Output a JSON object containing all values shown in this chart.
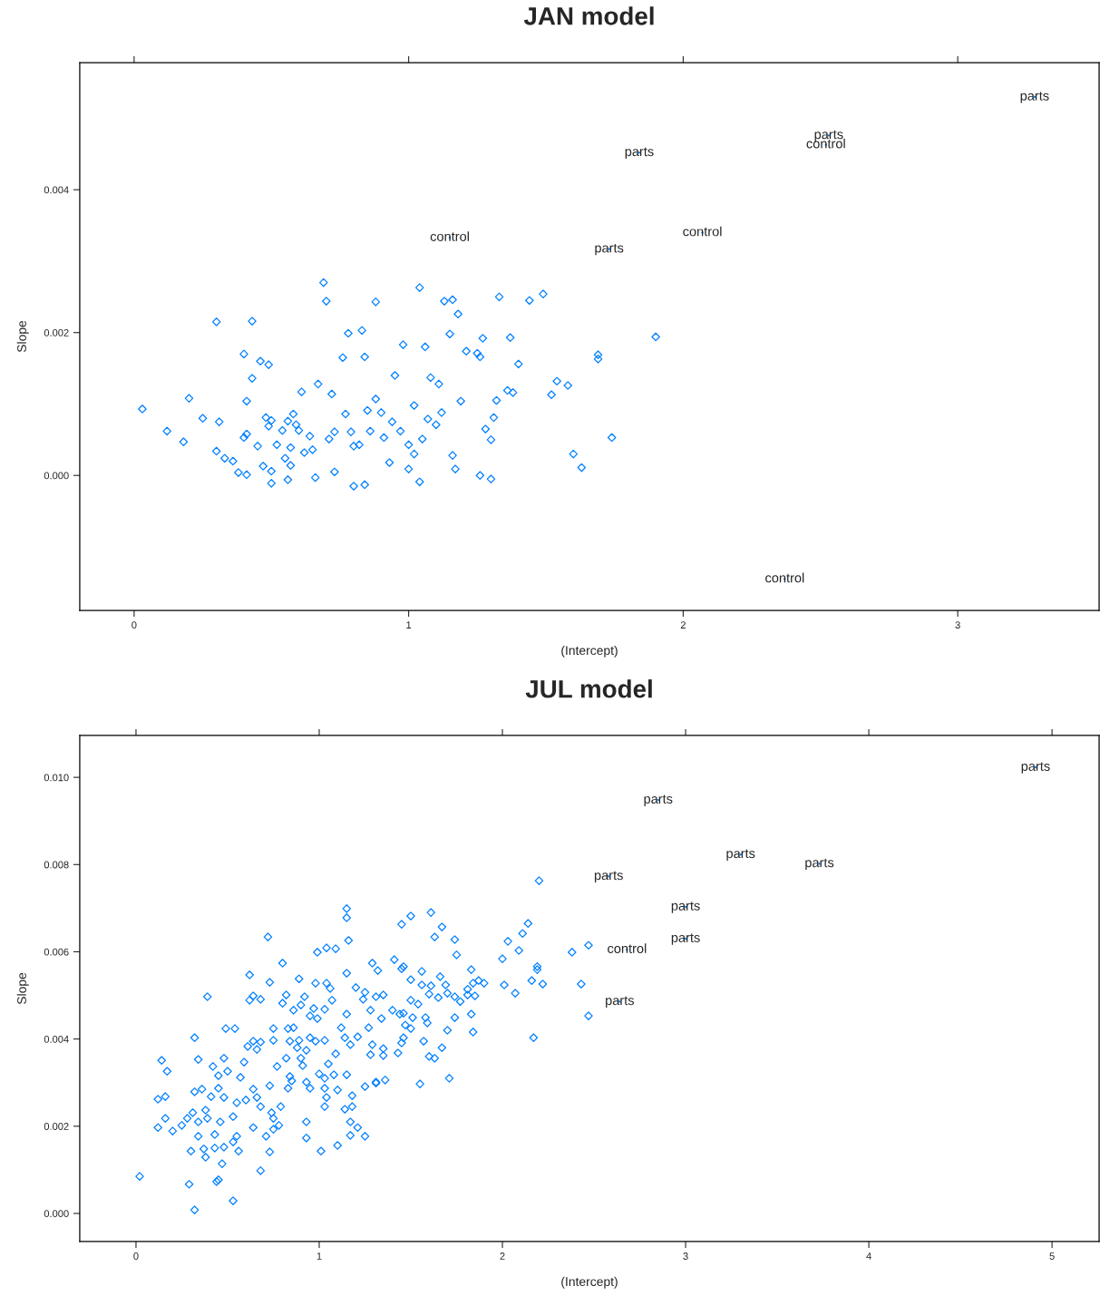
{
  "chart_data": [
    {
      "type": "scatter",
      "title": "JAN model",
      "xlabel": "(Intercept)",
      "ylabel": "Slope",
      "color": "#0080ff",
      "marker": "diamond",
      "grid": false,
      "xlim": [
        -0.198,
        3.515
      ],
      "ylim": [
        -0.00189,
        0.00578
      ],
      "xticks": [
        0,
        1,
        2,
        3
      ],
      "yticks": [
        {
          "value": 0,
          "label": "0.000"
        },
        {
          "value": 0.002,
          "label": "0.002"
        },
        {
          "value": 0.004,
          "label": "0.004"
        }
      ],
      "x": [
        0.03,
        0.12,
        0.18,
        0.2,
        0.25,
        0.3,
        0.31,
        0.3,
        0.33,
        0.36,
        0.38,
        0.4,
        0.41,
        0.41,
        0.41,
        0.43,
        0.43,
        0.4,
        0.46,
        0.49,
        0.45,
        0.47,
        0.48,
        0.49,
        0.5,
        0.5,
        0.5,
        0.52,
        0.54,
        0.55,
        0.56,
        0.56,
        0.57,
        0.57,
        0.58,
        0.59,
        0.6,
        0.61,
        0.62,
        0.64,
        0.65,
        0.66,
        0.67,
        0.69,
        0.7,
        0.71,
        0.72,
        0.73,
        0.73,
        0.76,
        0.77,
        0.78,
        0.79,
        0.8,
        0.8,
        0.82,
        0.83,
        0.84,
        0.84,
        0.85,
        0.86,
        0.88,
        0.88,
        0.9,
        0.91,
        0.93,
        0.95,
        0.94,
        0.97,
        0.98,
        1.0,
        1.0,
        1.02,
        1.02,
        1.04,
        1.04,
        1.05,
        1.06,
        1.07,
        1.08,
        1.1,
        1.11,
        1.12,
        1.13,
        1.15,
        1.16,
        1.16,
        1.18,
        1.17,
        1.19,
        1.21,
        1.25,
        1.26,
        1.26,
        1.27,
        1.28,
        1.3,
        1.3,
        1.31,
        1.32,
        1.33,
        1.36,
        1.37,
        1.38,
        1.4,
        1.44,
        1.49,
        1.52,
        1.54,
        1.58,
        1.6,
        1.63,
        1.69,
        1.69,
        1.74,
        1.9
      ],
      "values": [
        0.00093,
        0.00062,
        0.00047,
        0.00108,
        0.0008,
        0.00215,
        0.00075,
        0.00034,
        0.00024,
        0.0002,
        4e-05,
        0.00053,
        0.00058,
        1e-05,
        0.00104,
        0.00136,
        0.00216,
        0.0017,
        0.0016,
        0.00155,
        0.00041,
        0.00013,
        0.00081,
        0.00069,
        0.00077,
        6e-05,
        -0.00011,
        0.00043,
        0.00063,
        0.00024,
        -6e-05,
        0.00076,
        0.00039,
        0.00014,
        0.00086,
        0.00071,
        0.00063,
        0.00117,
        0.00032,
        0.00055,
        0.00036,
        -3e-05,
        0.00128,
        0.0027,
        0.00244,
        0.00051,
        0.00114,
        0.00061,
        5e-05,
        0.00165,
        0.00086,
        0.00199,
        0.00061,
        0.00041,
        -0.00015,
        0.00043,
        0.00203,
        0.00166,
        -0.00013,
        0.00091,
        0.00062,
        0.00107,
        0.00243,
        0.00088,
        0.00053,
        0.00018,
        0.0014,
        0.00075,
        0.00062,
        0.00183,
        9e-05,
        0.00043,
        0.00098,
        0.0003,
        0.00263,
        -9e-05,
        0.00051,
        0.0018,
        0.00079,
        0.00137,
        0.00071,
        0.00128,
        0.00088,
        0.00244,
        0.00198,
        0.00246,
        0.00028,
        0.00226,
        9e-05,
        0.00104,
        0.00174,
        0.00171,
        0.00166,
        0.0,
        0.00192,
        0.00065,
        0.0005,
        -5e-05,
        0.00081,
        0.00105,
        0.0025,
        0.00119,
        0.00193,
        0.00116,
        0.00156,
        0.00245,
        0.00254,
        0.00113,
        0.00132,
        0.00126,
        0.0003,
        0.00011,
        0.00163,
        0.00169,
        0.00053,
        0.00194
      ],
      "annotations": [
        {
          "text": "parts",
          "x": 3.28,
          "y": 0.0053
        },
        {
          "text": "parts",
          "x": 2.53,
          "y": 0.00476
        },
        {
          "text": "control",
          "x": 2.52,
          "y": 0.00463
        },
        {
          "text": "parts",
          "x": 1.84,
          "y": 0.00452
        },
        {
          "text": "control",
          "x": 2.07,
          "y": 0.0034
        },
        {
          "text": "parts",
          "x": 1.73,
          "y": 0.00317
        },
        {
          "text": "control",
          "x": 1.15,
          "y": 0.00333
        },
        {
          "text": "control",
          "x": 2.37,
          "y": -0.00145
        }
      ]
    },
    {
      "type": "scatter",
      "title": "JUL model",
      "xlabel": "(Intercept)",
      "ylabel": "Slope",
      "color": "#0080ff",
      "marker": "diamond",
      "grid": false,
      "xlim": [
        -0.307,
        5.257
      ],
      "ylim": [
        -0.000645,
        0.01096
      ],
      "xticks": [
        0,
        1,
        2,
        3,
        4,
        5
      ],
      "yticks": [
        {
          "value": 0,
          "label": "0.000"
        },
        {
          "value": 0.002,
          "label": "0.002"
        },
        {
          "value": 0.004,
          "label": "0.004"
        },
        {
          "value": 0.006,
          "label": "0.006"
        },
        {
          "value": 0.008,
          "label": "0.008"
        },
        {
          "value": 0.01,
          "label": "0.010"
        }
      ],
      "x": [
        0.02,
        0.29,
        0.32,
        0.45,
        0.53,
        0.12,
        0.14,
        0.17,
        0.16,
        0.16,
        0.12,
        0.2,
        0.25,
        0.28,
        0.31,
        0.32,
        0.34,
        0.32,
        0.36,
        0.34,
        0.38,
        0.39,
        0.34,
        0.3,
        0.37,
        0.38,
        0.43,
        0.43,
        0.46,
        0.48,
        0.47,
        0.44,
        0.39,
        0.42,
        0.41,
        0.45,
        0.48,
        0.5,
        0.45,
        0.48,
        0.49,
        0.54,
        0.53,
        0.55,
        0.55,
        0.53,
        0.56,
        0.57,
        0.59,
        0.61,
        0.62,
        0.62,
        0.64,
        0.68,
        0.6,
        0.64,
        0.66,
        0.68,
        0.64,
        0.66,
        0.68,
        0.64,
        0.71,
        0.68,
        0.73,
        0.72,
        0.73,
        0.75,
        0.73,
        0.74,
        0.75,
        0.75,
        0.78,
        0.79,
        0.75,
        0.77,
        0.8,
        0.82,
        0.8,
        0.84,
        0.82,
        0.83,
        0.86,
        0.86,
        0.84,
        0.83,
        0.85,
        0.88,
        0.89,
        0.9,
        0.91,
        0.89,
        0.92,
        0.9,
        0.95,
        0.97,
        0.93,
        0.95,
        0.93,
        0.95,
        0.93,
        0.93,
        0.99,
        0.98,
        0.99,
        1.03,
        0.98,
        1.03,
        1.0,
        1.03,
        1.03,
        1.04,
        1.03,
        1.01,
        1.04,
        1.09,
        1.04,
        1.06,
        1.07,
        1.05,
        1.09,
        1.08,
        1.1,
        1.1,
        1.15,
        1.15,
        1.15,
        1.16,
        1.12,
        1.14,
        1.17,
        1.15,
        1.15,
        1.14,
        1.18,
        1.18,
        1.17,
        1.21,
        1.17,
        1.25,
        1.21,
        1.2,
        1.24,
        1.25,
        1.25,
        1.29,
        1.32,
        1.28,
        1.31,
        1.27,
        1.29,
        1.28,
        1.31,
        2.2,
        1.5,
        1.45,
        1.61,
        1.67,
        1.63,
        1.74,
        1.75,
        2.14,
        2.11,
        2.03,
        2.09,
        2.0,
        2.38,
        2.47,
        1.41,
        1.45,
        1.46,
        1.56,
        1.5,
        1.66,
        1.56,
        1.61,
        1.69,
        1.83,
        1.84,
        1.87,
        1.9,
        1.81,
        2.01,
        2.07,
        2.19,
        2.19,
        2.16,
        2.22,
        2.43,
        2.47,
        2.17,
        1.35,
        1.6,
        1.65,
        1.7,
        1.74,
        1.77,
        1.85,
        1.81,
        1.5,
        1.54,
        1.4,
        1.44,
        1.46,
        1.34,
        1.51,
        1.58,
        1.59,
        1.74,
        1.83,
        1.47,
        1.5,
        1.7,
        1.84,
        1.46,
        1.45,
        1.57,
        1.67,
        1.35,
        1.35,
        1.43,
        1.6,
        1.63,
        1.55,
        1.71,
        1.36,
        1.31
      ],
      "values": [
        0.00085,
        0.00067,
        8e-05,
        0.00077,
        0.00029,
        0.00262,
        0.00351,
        0.00326,
        0.00268,
        0.00218,
        0.00197,
        0.00189,
        0.00202,
        0.00218,
        0.00231,
        0.00403,
        0.00353,
        0.00279,
        0.00285,
        0.0021,
        0.00237,
        0.00218,
        0.00177,
        0.00143,
        0.00148,
        0.00129,
        0.00181,
        0.0015,
        0.0021,
        0.00152,
        0.00114,
        0.00073,
        0.00497,
        0.00337,
        0.00268,
        0.00316,
        0.00356,
        0.00326,
        0.00287,
        0.00266,
        0.00424,
        0.00424,
        0.00222,
        0.00254,
        0.00177,
        0.00164,
        0.00143,
        0.00312,
        0.00347,
        0.00383,
        0.00547,
        0.00489,
        0.00499,
        0.00491,
        0.0026,
        0.00395,
        0.00376,
        0.00393,
        0.00285,
        0.00266,
        0.00245,
        0.00197,
        0.00177,
        0.00098,
        0.00141,
        0.00634,
        0.0053,
        0.00397,
        0.00293,
        0.00231,
        0.00218,
        0.00193,
        0.00202,
        0.00245,
        0.00424,
        0.00337,
        0.00574,
        0.00501,
        0.00482,
        0.00395,
        0.00356,
        0.00424,
        0.00426,
        0.00466,
        0.00314,
        0.00287,
        0.00304,
        0.0038,
        0.00397,
        0.00356,
        0.00339,
        0.00538,
        0.00497,
        0.00478,
        0.00453,
        0.0047,
        0.00374,
        0.00403,
        0.00301,
        0.00287,
        0.0021,
        0.00173,
        0.00599,
        0.00528,
        0.00447,
        0.00468,
        0.00395,
        0.00397,
        0.0032,
        0.0031,
        0.00287,
        0.00266,
        0.00245,
        0.00143,
        0.00609,
        0.00607,
        0.00528,
        0.00516,
        0.00489,
        0.00343,
        0.00366,
        0.00318,
        0.00283,
        0.00156,
        0.00551,
        0.00699,
        0.00678,
        0.00626,
        0.00426,
        0.00403,
        0.00387,
        0.00457,
        0.00318,
        0.00239,
        0.0027,
        0.00245,
        0.0021,
        0.00197,
        0.00179,
        0.00177,
        0.00405,
        0.00518,
        0.00491,
        0.00507,
        0.00291,
        0.00574,
        0.00557,
        0.00466,
        0.00497,
        0.00426,
        0.00387,
        0.00364,
        0.00301,
        0.00763,
        0.00682,
        0.00663,
        0.0069,
        0.00657,
        0.00634,
        0.00628,
        0.00593,
        0.00665,
        0.00642,
        0.00624,
        0.00603,
        0.00584,
        0.00599,
        0.00615,
        0.00582,
        0.00561,
        0.00566,
        0.00555,
        0.00536,
        0.00543,
        0.00524,
        0.00522,
        0.00524,
        0.00559,
        0.00528,
        0.00534,
        0.00528,
        0.00514,
        0.00524,
        0.00505,
        0.00566,
        0.00559,
        0.00534,
        0.00526,
        0.00526,
        0.00453,
        0.00403,
        0.00501,
        0.00503,
        0.00495,
        0.00505,
        0.00497,
        0.00486,
        0.00499,
        0.00501,
        0.00489,
        0.0048,
        0.00466,
        0.00457,
        0.00459,
        0.00447,
        0.00449,
        0.00449,
        0.00437,
        0.00449,
        0.00457,
        0.00432,
        0.00424,
        0.0042,
        0.00416,
        0.00403,
        0.00391,
        0.00395,
        0.0038,
        0.00378,
        0.00362,
        0.00368,
        0.0036,
        0.00356,
        0.00297,
        0.0031,
        0.00306,
        0.00299
      ],
      "annotations": [
        {
          "text": "parts",
          "x": 4.91,
          "y": 0.01023
        },
        {
          "text": "parts",
          "x": 2.85,
          "y": 0.00948
        },
        {
          "text": "parts",
          "x": 3.3,
          "y": 0.00823
        },
        {
          "text": "parts",
          "x": 3.73,
          "y": 0.00802
        },
        {
          "text": "parts",
          "x": 2.58,
          "y": 0.00773
        },
        {
          "text": "parts",
          "x": 3.0,
          "y": 0.00703
        },
        {
          "text": "parts",
          "x": 3.0,
          "y": 0.0063
        },
        {
          "text": "control",
          "x": 2.68,
          "y": 0.00605
        },
        {
          "text": "parts",
          "x": 2.64,
          "y": 0.00486
        }
      ]
    }
  ]
}
